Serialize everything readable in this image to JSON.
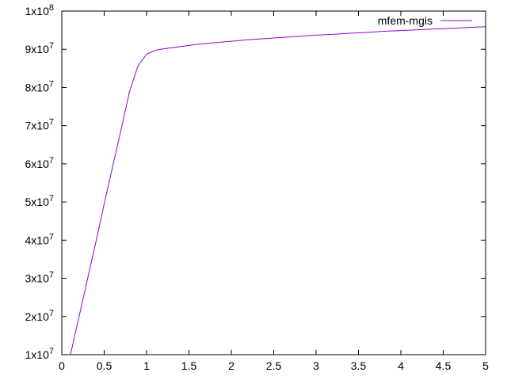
{
  "chart_data": {
    "type": "line",
    "title": "",
    "xlabel": "",
    "ylabel": "",
    "xlim": [
      0,
      5
    ],
    "ylim": [
      10000000,
      100000000
    ],
    "x_ticks": [
      0,
      0.5,
      1,
      1.5,
      2,
      2.5,
      3,
      3.5,
      4,
      4.5,
      5
    ],
    "x_tick_labels": [
      "0",
      "0.5",
      "1",
      "1.5",
      "2",
      "2.5",
      "3",
      "3.5",
      "4",
      "4.5",
      "5"
    ],
    "y_ticks": [
      {
        "value": 10000000,
        "mantissa": "1",
        "base": "x10",
        "exponent": "7"
      },
      {
        "value": 20000000,
        "mantissa": "2",
        "base": "x10",
        "exponent": "7"
      },
      {
        "value": 30000000,
        "mantissa": "3",
        "base": "x10",
        "exponent": "7"
      },
      {
        "value": 40000000,
        "mantissa": "4",
        "base": "x10",
        "exponent": "7"
      },
      {
        "value": 50000000,
        "mantissa": "5",
        "base": "x10",
        "exponent": "7"
      },
      {
        "value": 60000000,
        "mantissa": "6",
        "base": "x10",
        "exponent": "7"
      },
      {
        "value": 70000000,
        "mantissa": "7",
        "base": "x10",
        "exponent": "7"
      },
      {
        "value": 80000000,
        "mantissa": "8",
        "base": "x10",
        "exponent": "7"
      },
      {
        "value": 90000000,
        "mantissa": "9",
        "base": "x10",
        "exponent": "7"
      },
      {
        "value": 100000000,
        "mantissa": "1",
        "base": "x10",
        "exponent": "8"
      }
    ],
    "grid": false,
    "legend_position": "top-right",
    "series": [
      {
        "name": "mfem-mgis",
        "color": "#9400d3",
        "x": [
          0.1,
          0.2,
          0.3,
          0.4,
          0.5,
          0.6,
          0.7,
          0.8,
          0.9,
          1.0,
          1.1,
          1.2,
          1.3,
          1.4,
          1.5,
          1.6,
          1.7,
          1.8,
          1.9,
          2.0,
          2.2,
          2.4,
          2.6,
          2.8,
          3.0,
          3.2,
          3.4,
          3.6,
          3.8,
          4.0,
          4.2,
          4.4,
          4.6,
          4.8,
          5.0
        ],
        "y": [
          9800000,
          19600000,
          29500000,
          39300000,
          49500000,
          59300000,
          69000000,
          79000000,
          85700000,
          88700000,
          89700000,
          90100000,
          90400000,
          90700000,
          91000000,
          91300000,
          91500000,
          91700000,
          91900000,
          92100000,
          92500000,
          92800000,
          93100000,
          93400000,
          93700000,
          93900000,
          94200000,
          94400000,
          94700000,
          94900000,
          95100000,
          95300000,
          95500000,
          95700000,
          95900000
        ]
      }
    ]
  }
}
